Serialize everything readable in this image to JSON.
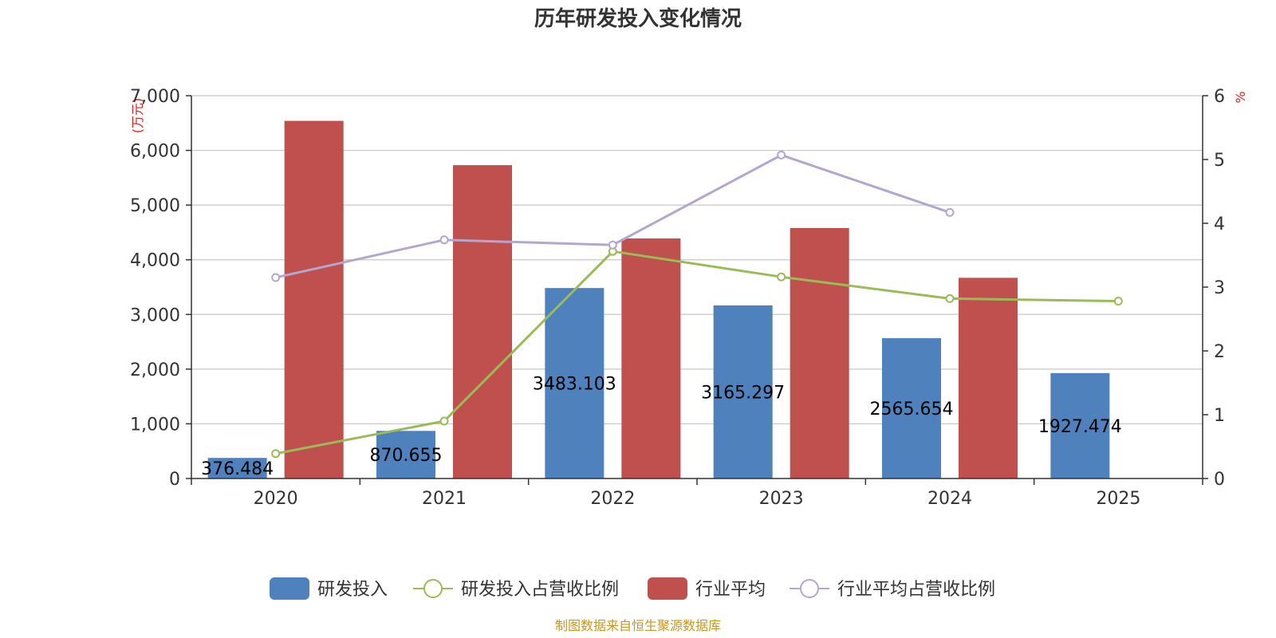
{
  "chart_data": {
    "type": "bar",
    "title": "历年研发投入变化情况",
    "categories": [
      "2020",
      "2021",
      "2022",
      "2023",
      "2024",
      "2025"
    ],
    "y_left": {
      "unit_label": "(万元)",
      "ylim": [
        0,
        7000
      ],
      "ticks": [
        0,
        1000,
        2000,
        3000,
        4000,
        5000,
        6000,
        7000
      ]
    },
    "y_right": {
      "unit_label": "%",
      "ylim": [
        0,
        6
      ],
      "ticks": [
        0,
        1,
        2,
        3,
        4,
        5,
        6
      ]
    },
    "grid": true,
    "legend_position": "bottom",
    "series": [
      {
        "name": "研发投入",
        "kind": "bar",
        "axis": "left",
        "color": "#4f81bd",
        "values": [
          376.484,
          870.655,
          3483.103,
          3165.297,
          2565.654,
          1927.474
        ],
        "labels": [
          "376.484",
          "870.655",
          "3483.103",
          "3165.297",
          "2565.654",
          "1927.474"
        ]
      },
      {
        "name": "研发投入占营收比例",
        "kind": "line",
        "axis": "right",
        "color": "#9bbb59",
        "values": [
          0.39,
          0.9,
          3.56,
          3.16,
          2.82,
          2.78
        ]
      },
      {
        "name": "行业平均",
        "kind": "bar",
        "axis": "left",
        "color": "#c0504d",
        "values": [
          6540,
          5730,
          4390,
          4580,
          3670,
          null
        ]
      },
      {
        "name": "行业平均占营收比例",
        "kind": "line",
        "axis": "right",
        "color": "#b3a6cf",
        "values": [
          3.15,
          3.74,
          3.66,
          5.07,
          4.17,
          null
        ]
      }
    ]
  },
  "source_note": "制图数据来自恒生聚源数据库"
}
